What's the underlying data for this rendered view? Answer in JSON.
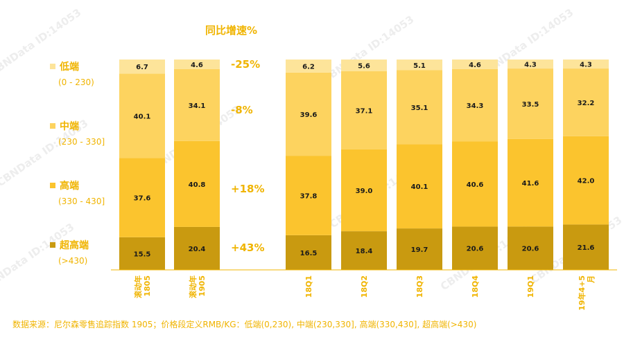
{
  "yoy_title": "同比增速%",
  "legend": [
    {
      "name": "低端",
      "range": "(0 - 230)",
      "color": "#fde49a"
    },
    {
      "name": "中端",
      "range": "(230 - 330]",
      "color": "#fdd35f"
    },
    {
      "name": "高端",
      "range": "(330 - 430]",
      "color": "#fbc42e"
    },
    {
      "name": "超高端",
      "range": "(>430)",
      "color": "#c99a10"
    }
  ],
  "yoy": {
    "low": "-25%",
    "mid": "-8%",
    "high": "+18%",
    "super": "+43%"
  },
  "source_note": "数据来源：尼尔森零售追踪指数 1905；价格段定义RMB/KG：低端(0,230), 中端(230,330], 高端(330,430], 超高端(>430)",
  "watermark": "CBNData ID:14053",
  "chart_data": {
    "type": "bar",
    "stacked": true,
    "normalized": "percent",
    "categories": [
      "滚动年\n1805",
      "滚动年\n1905",
      "18Q1",
      "18Q2",
      "18Q3",
      "18Q4",
      "19Q1",
      "19年4+5\n月"
    ],
    "series": [
      {
        "name": "超高端",
        "color": "#c99a10",
        "values": [
          15.5,
          20.4,
          16.5,
          18.4,
          19.7,
          20.6,
          20.6,
          21.6
        ]
      },
      {
        "name": "高端",
        "color": "#fbc42e",
        "values": [
          37.6,
          40.8,
          37.8,
          39.0,
          40.1,
          40.6,
          41.6,
          42.0
        ]
      },
      {
        "name": "中端",
        "color": "#fdd35f",
        "values": [
          40.1,
          34.1,
          39.6,
          37.1,
          35.1,
          34.3,
          33.5,
          32.2
        ]
      },
      {
        "name": "低端",
        "color": "#fde49a",
        "values": [
          6.7,
          4.6,
          6.2,
          5.6,
          5.1,
          4.6,
          4.3,
          4.3
        ]
      }
    ]
  }
}
